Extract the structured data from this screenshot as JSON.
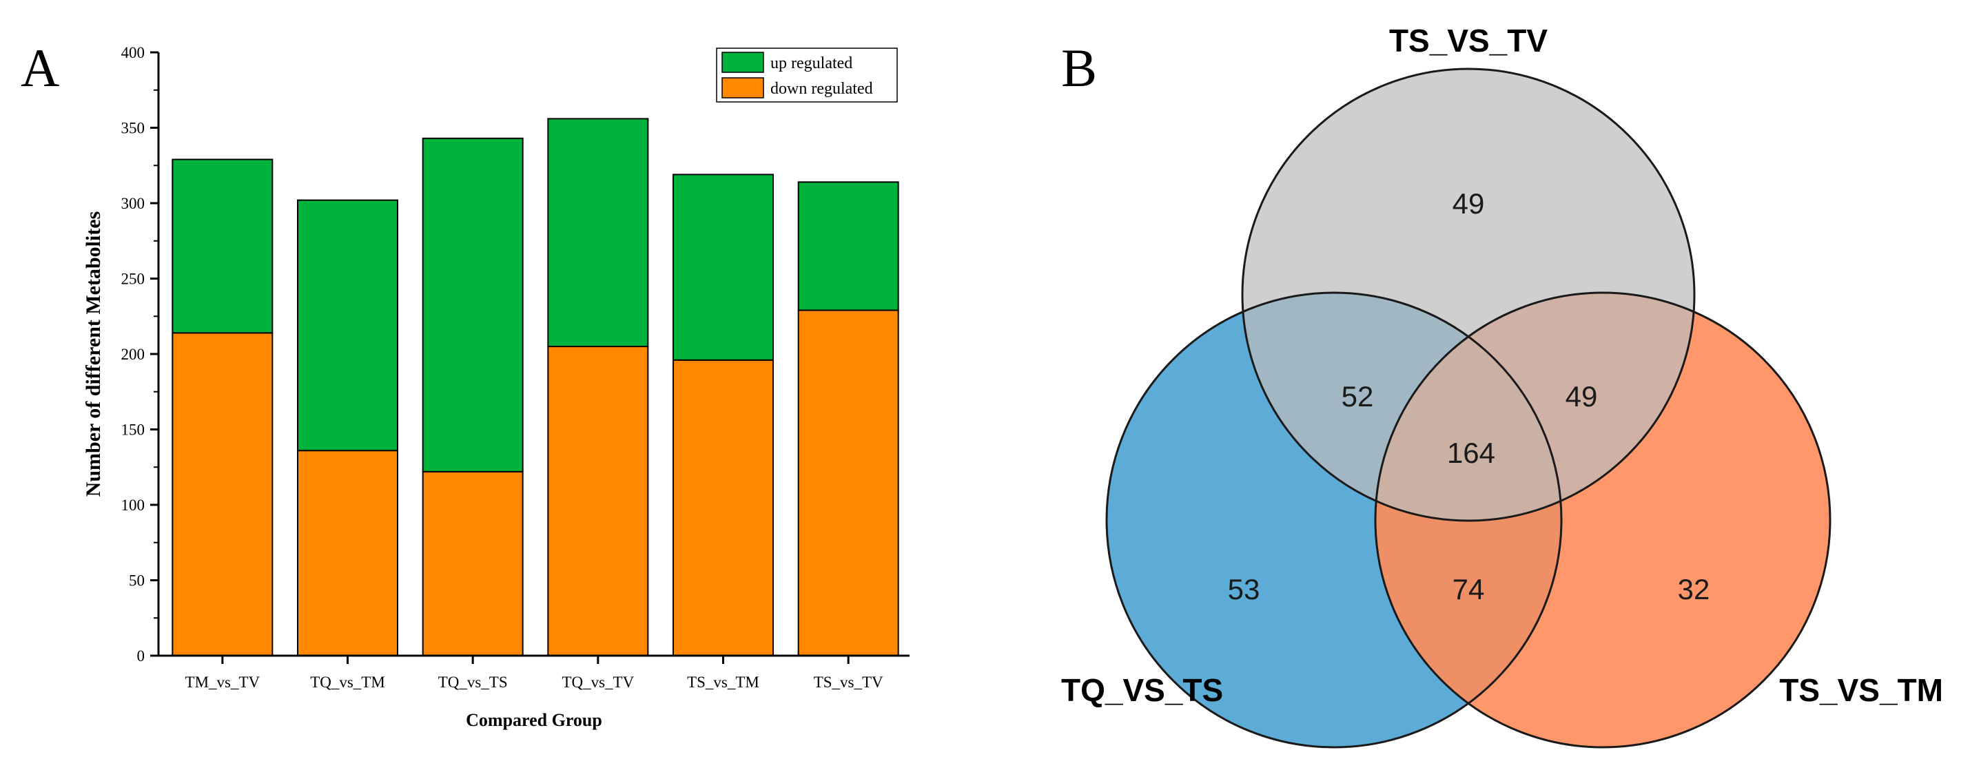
{
  "panel_a_label": "A",
  "panel_b_label": "B",
  "colors": {
    "up": "#00b33c",
    "down": "#ff8800",
    "venn_tv": "#bdbdbd",
    "venn_ts": "#4aa3d3",
    "venn_tm": "#ff8c5a"
  },
  "chart_data": [
    {
      "type": "bar",
      "stacked": true,
      "title": "",
      "xlabel": "Compared Group",
      "ylabel": "Number of different Metabolites",
      "ylim": [
        0,
        400
      ],
      "yticks": [
        0,
        50,
        100,
        150,
        200,
        250,
        300,
        350,
        400
      ],
      "categories": [
        "TM_vs_TV",
        "TQ_vs_TM",
        "TQ_vs_TS",
        "TQ_vs_TV",
        "TS_vs_TM",
        "TS_vs_TV"
      ],
      "series": [
        {
          "name": "down regulated",
          "values": [
            214,
            136,
            122,
            205,
            196,
            229
          ]
        },
        {
          "name": "up regulated",
          "values": [
            115,
            166,
            221,
            151,
            123,
            85
          ]
        }
      ],
      "legend": [
        "up regulated",
        "down regulated"
      ],
      "legend_position": "top-right"
    },
    {
      "type": "venn",
      "sets": [
        "TS_VS_TV",
        "TQ_VS_TS",
        "TS_VS_TM"
      ],
      "regions": {
        "tv_only": "49",
        "ts_only": "53",
        "tm_only": "32",
        "tv_ts": "52",
        "tv_tm": "49",
        "ts_tm": "74",
        "all": "164"
      }
    }
  ]
}
